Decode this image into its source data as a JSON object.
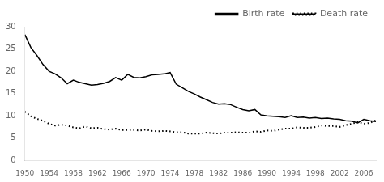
{
  "chart_data": {
    "type": "line",
    "x": [
      1950,
      1951,
      1952,
      1953,
      1954,
      1955,
      1956,
      1957,
      1958,
      1959,
      1960,
      1961,
      1962,
      1963,
      1964,
      1965,
      1966,
      1967,
      1968,
      1969,
      1970,
      1971,
      1972,
      1973,
      1974,
      1975,
      1976,
      1977,
      1978,
      1979,
      1980,
      1981,
      1982,
      1983,
      1984,
      1985,
      1986,
      1987,
      1988,
      1989,
      1990,
      1991,
      1992,
      1993,
      1994,
      1995,
      1996,
      1997,
      1998,
      1999,
      2000,
      2001,
      2002,
      2003,
      2004,
      2005,
      2006,
      2007,
      2008
    ],
    "series": [
      {
        "name": "Birth rate",
        "color": "#000000",
        "line_style": "solid",
        "values": [
          28.2,
          25.3,
          23.5,
          21.5,
          20.0,
          19.4,
          18.5,
          17.2,
          18.0,
          17.5,
          17.2,
          16.9,
          17.0,
          17.3,
          17.7,
          18.6,
          18.0,
          19.3,
          18.6,
          18.5,
          18.8,
          19.2,
          19.3,
          19.4,
          19.7,
          17.1,
          16.3,
          15.5,
          14.9,
          14.2,
          13.6,
          13.0,
          12.6,
          12.7,
          12.5,
          11.9,
          11.4,
          11.1,
          11.4,
          10.2,
          10.0,
          9.9,
          9.8,
          9.6,
          10.0,
          9.6,
          9.7,
          9.5,
          9.6,
          9.4,
          9.5,
          9.3,
          9.2,
          8.9,
          8.8,
          8.4,
          9.2,
          8.9,
          8.7
        ]
      },
      {
        "name": "Death rate",
        "color": "#000000",
        "line_style": "dotted",
        "values": [
          10.9,
          9.9,
          9.3,
          8.9,
          8.2,
          7.8,
          8.0,
          7.8,
          7.4,
          7.2,
          7.6,
          7.2,
          7.3,
          7.0,
          6.9,
          7.1,
          6.8,
          6.8,
          6.8,
          6.7,
          6.9,
          6.6,
          6.5,
          6.6,
          6.5,
          6.3,
          6.3,
          6.0,
          6.0,
          6.0,
          6.2,
          6.1,
          6.0,
          6.2,
          6.2,
          6.3,
          6.2,
          6.2,
          6.5,
          6.4,
          6.7,
          6.6,
          6.9,
          7.1,
          7.1,
          7.4,
          7.3,
          7.3,
          7.5,
          7.8,
          7.7,
          7.7,
          7.5,
          7.9,
          8.2,
          8.6,
          8.2,
          8.4,
          9.0
        ]
      }
    ],
    "xlim": [
      1950,
      2008
    ],
    "xticks": [
      1950,
      1954,
      1958,
      1962,
      1966,
      1970,
      1974,
      1978,
      1982,
      1986,
      1990,
      1994,
      1998,
      2002,
      2006
    ],
    "ylim": [
      0,
      30
    ],
    "yticks": [
      0,
      5,
      10,
      15,
      20,
      25,
      30
    ],
    "grid": false,
    "legend": "upper right"
  }
}
